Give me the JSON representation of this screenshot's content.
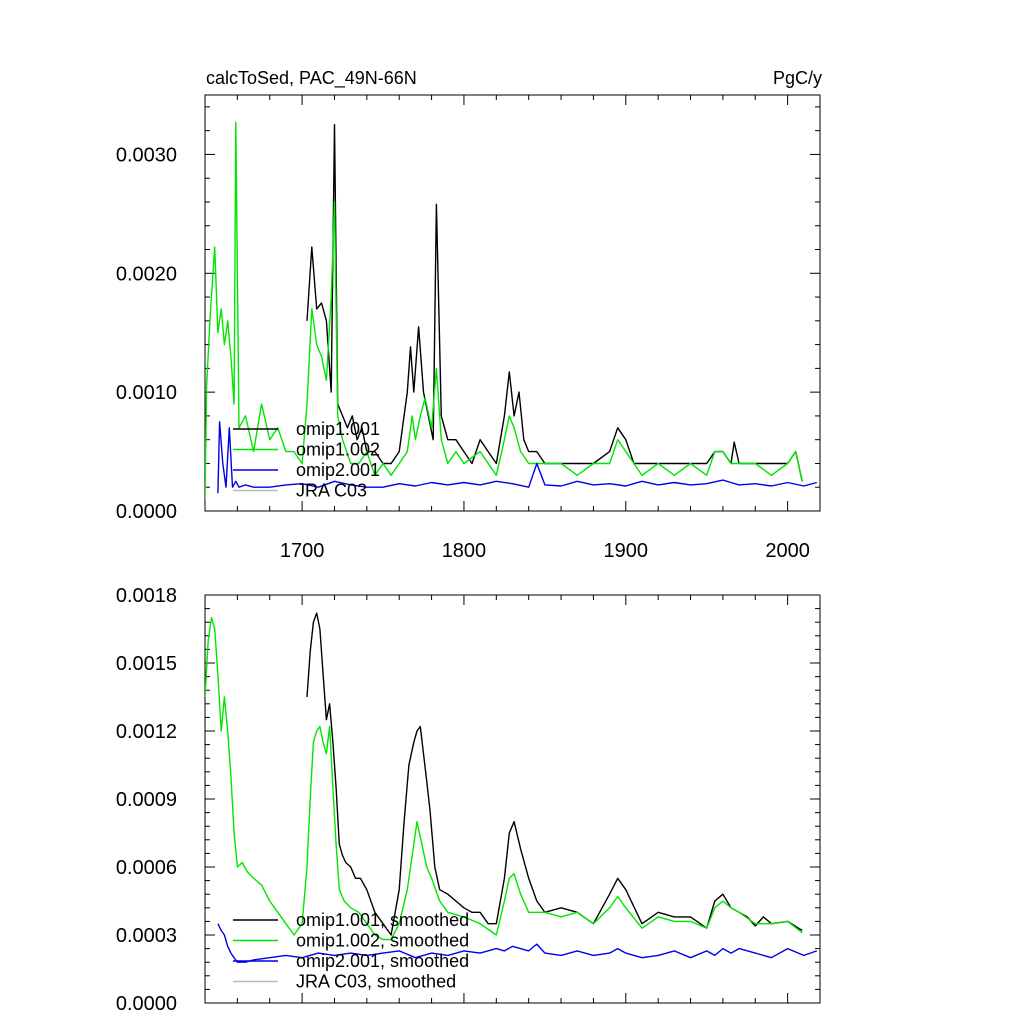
{
  "chart_data": [
    {
      "type": "line",
      "title": "calcToSed, PAC_49N-66N",
      "units": "PgC/y",
      "xlabel": "",
      "ylabel": "",
      "xlim": [
        1640,
        2020
      ],
      "ylim": [
        0,
        0.0035
      ],
      "xticks": [
        1700,
        1800,
        1900,
        2000
      ],
      "xtick_labels": [
        "1700",
        "1800",
        "1900",
        "2000"
      ],
      "yticks": [
        0,
        0.001,
        0.002,
        0.003
      ],
      "ytick_labels": [
        "0.0000",
        "0.0010",
        "0.0020",
        "0.0030"
      ],
      "legend_position": "bottom-left",
      "grid": false,
      "series": [
        {
          "name": "omip1.001",
          "color": "#000000",
          "x": [
            1703,
            1706,
            1709,
            1712,
            1715,
            1718,
            1720,
            1722,
            1725,
            1728,
            1731,
            1734,
            1737,
            1740,
            1745,
            1750,
            1755,
            1760,
            1765,
            1767,
            1769,
            1772,
            1775,
            1778,
            1781,
            1783,
            1786,
            1790,
            1795,
            1800,
            1805,
            1810,
            1815,
            1820,
            1825,
            1828,
            1831,
            1834,
            1837,
            1840,
            1845,
            1850,
            1860,
            1870,
            1880,
            1890,
            1895,
            1900,
            1905,
            1910,
            1920,
            1930,
            1940,
            1950,
            1955,
            1960,
            1965,
            1967,
            1970,
            1980,
            1990,
            2000,
            2005,
            2009
          ],
          "values": [
            0.0016,
            0.00222,
            0.0017,
            0.00175,
            0.0016,
            0.001,
            0.00325,
            0.0009,
            0.0008,
            0.0007,
            0.0008,
            0.0006,
            0.0007,
            0.0005,
            0.0005,
            0.0004,
            0.0004,
            0.0005,
            0.001,
            0.00138,
            0.001,
            0.00155,
            0.001,
            0.0008,
            0.0006,
            0.00258,
            0.0008,
            0.0006,
            0.0006,
            0.0005,
            0.0004,
            0.0006,
            0.0005,
            0.0004,
            0.0008,
            0.00117,
            0.0008,
            0.001,
            0.0006,
            0.0005,
            0.0005,
            0.0004,
            0.0004,
            0.0004,
            0.0004,
            0.0005,
            0.0007,
            0.0006,
            0.0004,
            0.0004,
            0.0004,
            0.0004,
            0.0004,
            0.0004,
            0.0005,
            0.0005,
            0.0004,
            0.00058,
            0.0004,
            0.0004,
            0.0004,
            0.0004,
            0.0005,
            0.00025
          ]
        },
        {
          "name": "omip1.002",
          "color": "#00e600",
          "x": [
            1640,
            1641,
            1643,
            1646,
            1648,
            1650,
            1652,
            1654,
            1656,
            1658,
            1659,
            1661,
            1665,
            1670,
            1675,
            1680,
            1685,
            1690,
            1695,
            1700,
            1703,
            1706,
            1709,
            1712,
            1715,
            1718,
            1720,
            1722,
            1725,
            1730,
            1735,
            1740,
            1745,
            1750,
            1755,
            1760,
            1765,
            1768,
            1770,
            1773,
            1776,
            1780,
            1783,
            1786,
            1790,
            1795,
            1800,
            1810,
            1820,
            1825,
            1828,
            1831,
            1835,
            1840,
            1850,
            1860,
            1870,
            1880,
            1890,
            1895,
            1900,
            1910,
            1920,
            1930,
            1940,
            1950,
            1955,
            1960,
            1965,
            1970,
            1980,
            1990,
            2000,
            2005,
            2009
          ],
          "values": [
            0.0001,
            0.00105,
            0.0016,
            0.00222,
            0.0015,
            0.0017,
            0.0014,
            0.0016,
            0.0013,
            0.0009,
            0.00327,
            0.0007,
            0.0008,
            0.0005,
            0.0009,
            0.0006,
            0.0007,
            0.0005,
            0.0005,
            0.0004,
            0.0009,
            0.0017,
            0.0014,
            0.0013,
            0.0011,
            0.0018,
            0.0026,
            0.0008,
            0.0006,
            0.0004,
            0.0004,
            0.0005,
            0.0003,
            0.0004,
            0.0003,
            0.0004,
            0.0005,
            0.0008,
            0.0006,
            0.0008,
            0.00095,
            0.0007,
            0.0012,
            0.0006,
            0.0004,
            0.0005,
            0.0004,
            0.0005,
            0.0003,
            0.0006,
            0.0008,
            0.0007,
            0.0005,
            0.0004,
            0.0004,
            0.0004,
            0.0003,
            0.0004,
            0.0004,
            0.0006,
            0.0005,
            0.0003,
            0.0004,
            0.0003,
            0.0004,
            0.0003,
            0.0005,
            0.0005,
            0.0004,
            0.0004,
            0.0004,
            0.0003,
            0.0004,
            0.0005,
            0.00025
          ]
        },
        {
          "name": "omip2.001",
          "color": "#0000e6",
          "x": [
            1648,
            1649,
            1651,
            1653,
            1655,
            1657,
            1659,
            1661,
            1665,
            1670,
            1680,
            1690,
            1700,
            1710,
            1720,
            1730,
            1740,
            1750,
            1760,
            1770,
            1780,
            1790,
            1800,
            1810,
            1820,
            1830,
            1840,
            1845,
            1850,
            1860,
            1870,
            1880,
            1890,
            1900,
            1910,
            1920,
            1930,
            1940,
            1950,
            1960,
            1965,
            1970,
            1980,
            1990,
            2000,
            2010,
            2018
          ],
          "values": [
            0.00015,
            0.00075,
            0.0004,
            0.0002,
            0.0007,
            0.0002,
            0.00025,
            0.0002,
            0.00022,
            0.0002,
            0.0002,
            0.00022,
            0.00023,
            0.0002,
            0.00025,
            0.00022,
            0.0002,
            0.0002,
            0.00023,
            0.00021,
            0.00024,
            0.00022,
            0.00024,
            0.00022,
            0.00025,
            0.00023,
            0.0002,
            0.0004,
            0.00022,
            0.00021,
            0.00025,
            0.00022,
            0.00023,
            0.00021,
            0.00025,
            0.00022,
            0.00024,
            0.00022,
            0.00023,
            0.00026,
            0.00024,
            0.00022,
            0.00023,
            0.00021,
            0.00024,
            0.00021,
            0.00024
          ]
        },
        {
          "name": "JRA C03",
          "color": "#bbbbbb",
          "x": [],
          "values": []
        }
      ]
    },
    {
      "type": "line",
      "title": "",
      "xlabel": "",
      "ylabel": "",
      "xlim": [
        1640,
        2020
      ],
      "ylim": [
        0,
        0.0018
      ],
      "xticks": [
        1700,
        1800,
        1900,
        2000
      ],
      "yticks": [
        0,
        0.0003,
        0.0006,
        0.0009,
        0.0012,
        0.0015,
        0.0018
      ],
      "ytick_labels": [
        "0.0000",
        "0.0003",
        "0.0006",
        "0.0009",
        "0.0012",
        "0.0015",
        "0.0018"
      ],
      "legend_position": "bottom-left",
      "grid": false,
      "series": [
        {
          "name": "omip1.001, smoothed",
          "color": "#000000",
          "x": [
            1703,
            1705,
            1707,
            1709,
            1711,
            1713,
            1715,
            1717,
            1719,
            1721,
            1723,
            1725,
            1727,
            1730,
            1733,
            1736,
            1740,
            1745,
            1750,
            1755,
            1760,
            1763,
            1766,
            1769,
            1771,
            1773,
            1775,
            1777,
            1779,
            1782,
            1785,
            1790,
            1795,
            1800,
            1805,
            1810,
            1815,
            1820,
            1825,
            1828,
            1831,
            1835,
            1840,
            1845,
            1850,
            1860,
            1870,
            1880,
            1890,
            1895,
            1900,
            1910,
            1920,
            1930,
            1940,
            1950,
            1955,
            1960,
            1965,
            1970,
            1975,
            1980,
            1985,
            1990,
            2000,
            2009
          ],
          "values": [
            0.00135,
            0.00155,
            0.00168,
            0.00172,
            0.00165,
            0.00145,
            0.00125,
            0.00132,
            0.00115,
            0.00095,
            0.0007,
            0.00065,
            0.00062,
            0.0006,
            0.00055,
            0.00055,
            0.0005,
            0.0004,
            0.00035,
            0.0003,
            0.0005,
            0.0008,
            0.00105,
            0.00115,
            0.0012,
            0.00122,
            0.0011,
            0.00098,
            0.00085,
            0.0006,
            0.0005,
            0.00048,
            0.00045,
            0.00042,
            0.0004,
            0.0004,
            0.00035,
            0.00035,
            0.00055,
            0.00075,
            0.0008,
            0.00068,
            0.00055,
            0.00045,
            0.0004,
            0.00042,
            0.0004,
            0.00035,
            0.00048,
            0.00055,
            0.0005,
            0.00035,
            0.0004,
            0.00038,
            0.00038,
            0.00033,
            0.00045,
            0.00048,
            0.00042,
            0.0004,
            0.00038,
            0.00034,
            0.00038,
            0.00035,
            0.00036,
            0.00032
          ]
        },
        {
          "name": "omip1.002, smoothed",
          "color": "#00e600",
          "x": [
            1640,
            1642,
            1644,
            1646,
            1648,
            1650,
            1652,
            1654,
            1656,
            1658,
            1660,
            1663,
            1666,
            1670,
            1675,
            1680,
            1685,
            1690,
            1695,
            1700,
            1703,
            1705,
            1707,
            1709,
            1711,
            1713,
            1715,
            1717,
            1719,
            1721,
            1723,
            1726,
            1730,
            1735,
            1740,
            1745,
            1750,
            1755,
            1760,
            1765,
            1768,
            1771,
            1774,
            1777,
            1780,
            1785,
            1790,
            1800,
            1810,
            1820,
            1825,
            1828,
            1831,
            1835,
            1840,
            1850,
            1860,
            1870,
            1880,
            1890,
            1895,
            1900,
            1910,
            1920,
            1930,
            1940,
            1950,
            1955,
            1960,
            1965,
            1970,
            1980,
            1990,
            2000,
            2009
          ],
          "values": [
            0.00135,
            0.0016,
            0.0017,
            0.00165,
            0.00145,
            0.0012,
            0.00135,
            0.0012,
            0.001,
            0.00075,
            0.0006,
            0.00062,
            0.00058,
            0.00055,
            0.00052,
            0.00045,
            0.0004,
            0.00035,
            0.0003,
            0.00035,
            0.0006,
            0.0009,
            0.00115,
            0.0012,
            0.00122,
            0.00115,
            0.0011,
            0.00122,
            0.00095,
            0.0007,
            0.0005,
            0.00045,
            0.00042,
            0.0004,
            0.00035,
            0.0003,
            0.00028,
            0.00028,
            0.00035,
            0.0005,
            0.00065,
            0.0008,
            0.0007,
            0.0006,
            0.00055,
            0.00045,
            0.0004,
            0.00038,
            0.00035,
            0.0003,
            0.00045,
            0.00055,
            0.00057,
            0.00048,
            0.0004,
            0.0004,
            0.00038,
            0.0004,
            0.00035,
            0.00042,
            0.00047,
            0.00042,
            0.00033,
            0.00038,
            0.00036,
            0.00036,
            0.00033,
            0.00042,
            0.00045,
            0.00042,
            0.0004,
            0.00035,
            0.00035,
            0.00036,
            0.00031
          ]
        },
        {
          "name": "omip2.001, smoothed",
          "color": "#0000e6",
          "x": [
            1648,
            1650,
            1652,
            1654,
            1656,
            1658,
            1660,
            1665,
            1670,
            1680,
            1690,
            1700,
            1710,
            1720,
            1730,
            1740,
            1750,
            1760,
            1770,
            1780,
            1790,
            1800,
            1810,
            1820,
            1825,
            1830,
            1840,
            1845,
            1850,
            1860,
            1870,
            1880,
            1890,
            1895,
            1900,
            1910,
            1920,
            1930,
            1940,
            1950,
            1955,
            1960,
            1965,
            1970,
            1980,
            1990,
            2000,
            2010,
            2018
          ],
          "values": [
            0.00035,
            0.00032,
            0.0003,
            0.00025,
            0.00022,
            0.0002,
            0.00018,
            0.00018,
            0.00019,
            0.0002,
            0.00021,
            0.0002,
            0.00022,
            0.00021,
            0.00022,
            0.00021,
            0.00022,
            0.00023,
            0.0002,
            0.00022,
            0.00021,
            0.00023,
            0.00022,
            0.00024,
            0.00023,
            0.00025,
            0.00023,
            0.00026,
            0.00022,
            0.00021,
            0.00023,
            0.00021,
            0.00022,
            0.00024,
            0.00022,
            0.0002,
            0.00021,
            0.00023,
            0.0002,
            0.00023,
            0.00021,
            0.00024,
            0.00022,
            0.00024,
            0.00022,
            0.0002,
            0.00024,
            0.00021,
            0.00023
          ]
        },
        {
          "name": "JRA C03, smoothed",
          "color": "#bbbbbb",
          "x": [],
          "values": []
        }
      ]
    }
  ]
}
